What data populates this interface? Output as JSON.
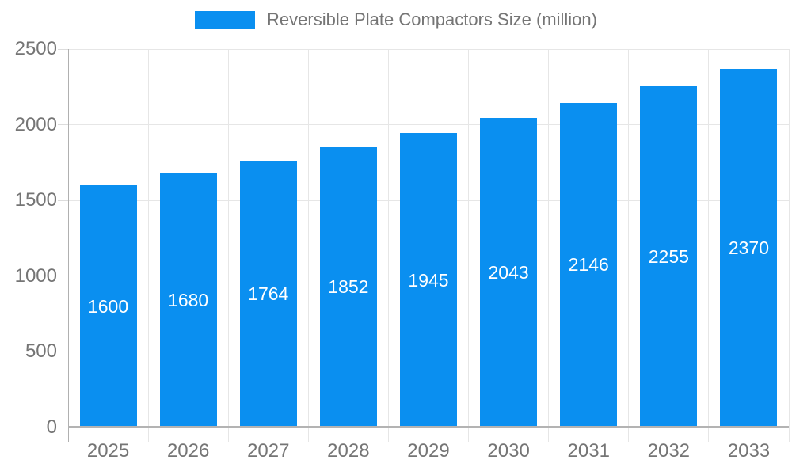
{
  "legend": {
    "label": "Reversible Plate Compactors Size (million)"
  },
  "chart_data": {
    "type": "bar",
    "title": "Reversible Plate Compactors Size (million)",
    "xlabel": "",
    "ylabel": "",
    "categories": [
      "2025",
      "2026",
      "2027",
      "2028",
      "2029",
      "2030",
      "2031",
      "2032",
      "2033"
    ],
    "values": [
      1600,
      1680,
      1764,
      1852,
      1945,
      2043,
      2146,
      2255,
      2370
    ],
    "yticks": [
      0,
      500,
      1000,
      1500,
      2000,
      2500
    ],
    "ylim": [
      0,
      2500
    ],
    "grid": true,
    "legend_position": "top-center",
    "value_labels": "inside-center-white"
  },
  "colors": {
    "bar": "#0a8ff0",
    "gridline": "#e6e6e6",
    "axis_line": "#b0b0b0",
    "text_gray": "#757575",
    "value_label": "#ffffff"
  }
}
